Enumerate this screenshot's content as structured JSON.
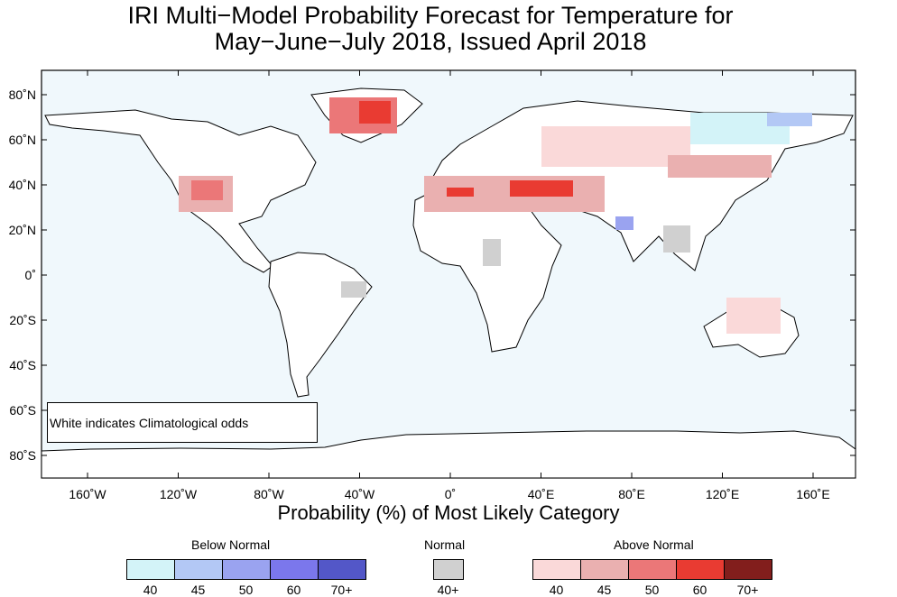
{
  "title": {
    "line1": "IRI Multi−Model Probability Forecast for Temperature for",
    "line2": "May−June−July 2018, Issued April 2018"
  },
  "map": {
    "lat_labels": [
      "80˚N",
      "60˚N",
      "40˚N",
      "20˚N",
      "0˚",
      "20˚S",
      "40˚S",
      "60˚S",
      "80˚S"
    ],
    "lon_labels": [
      "160˚W",
      "120˚W",
      "80˚W",
      "40˚W",
      "0˚",
      "40˚E",
      "80˚E",
      "120˚E",
      "160˚E"
    ],
    "ocean_color": "#f0f8fc",
    "land_color": "#ffffff",
    "note": "White indicates Climatological odds"
  },
  "legend": {
    "title": "Probability (%) of Most Likely Category",
    "below": {
      "label": "Below Normal",
      "ticks": [
        "40",
        "45",
        "50",
        "60",
        "70+"
      ],
      "colors": [
        "#d3f3f8",
        "#b3c8f5",
        "#9aa3f0",
        "#7b77ec",
        "#5357c8"
      ]
    },
    "normal": {
      "label": "Normal",
      "ticks": [
        "40+"
      ],
      "colors": [
        "#d0d0d0"
      ]
    },
    "above": {
      "label": "Above Normal",
      "ticks": [
        "40",
        "45",
        "50",
        "60",
        "70+"
      ],
      "colors": [
        "#fad9d9",
        "#eab0b0",
        "#eb7778",
        "#e93b32",
        "#821e1c"
      ]
    }
  }
}
